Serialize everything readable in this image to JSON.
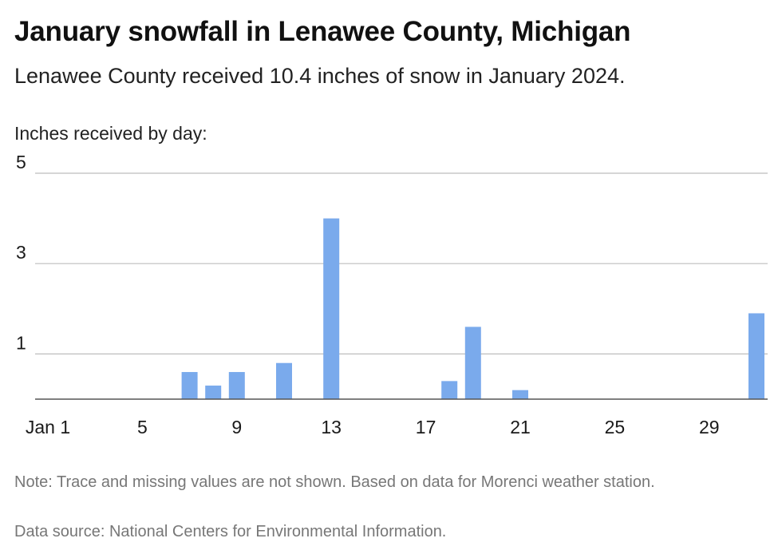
{
  "header": {
    "title": "January snowfall in Lenawee County, Michigan",
    "subtitle": "Lenawee County received 10.4 inches of snow in January 2024."
  },
  "footer": {
    "note": "Note: Trace and missing values are not shown. Based on data for Morenci weather station.",
    "source": "Data source: National Centers for Environmental Information."
  },
  "chart_data": {
    "type": "bar",
    "title": "January snowfall in Lenawee County, Michigan",
    "subtitle": "Lenawee County received 10.4 inches of snow in January 2024.",
    "ylabel": "Inches received by day:",
    "xlabel": "",
    "ylim": [
      0,
      5
    ],
    "y_ticks": [
      1,
      3,
      5
    ],
    "x_ticks": [
      {
        "day": 1,
        "label": "Jan 1"
      },
      {
        "day": 5,
        "label": "5"
      },
      {
        "day": 9,
        "label": "9"
      },
      {
        "day": 13,
        "label": "13"
      },
      {
        "day": 17,
        "label": "17"
      },
      {
        "day": 21,
        "label": "21"
      },
      {
        "day": 25,
        "label": "25"
      },
      {
        "day": 29,
        "label": "29"
      }
    ],
    "categories": [
      "1",
      "2",
      "3",
      "4",
      "5",
      "6",
      "7",
      "8",
      "9",
      "10",
      "11",
      "12",
      "13",
      "14",
      "15",
      "16",
      "17",
      "18",
      "19",
      "20",
      "21",
      "22",
      "23",
      "24",
      "25",
      "26",
      "27",
      "28",
      "29",
      "30",
      "31"
    ],
    "values": [
      null,
      null,
      null,
      null,
      null,
      null,
      0.6,
      0.3,
      0.6,
      null,
      0.8,
      null,
      4.0,
      null,
      null,
      null,
      null,
      0.4,
      1.6,
      null,
      0.2,
      null,
      null,
      null,
      null,
      null,
      null,
      null,
      null,
      null,
      1.9
    ],
    "bar_color": "#7aaaec",
    "grid": true
  }
}
